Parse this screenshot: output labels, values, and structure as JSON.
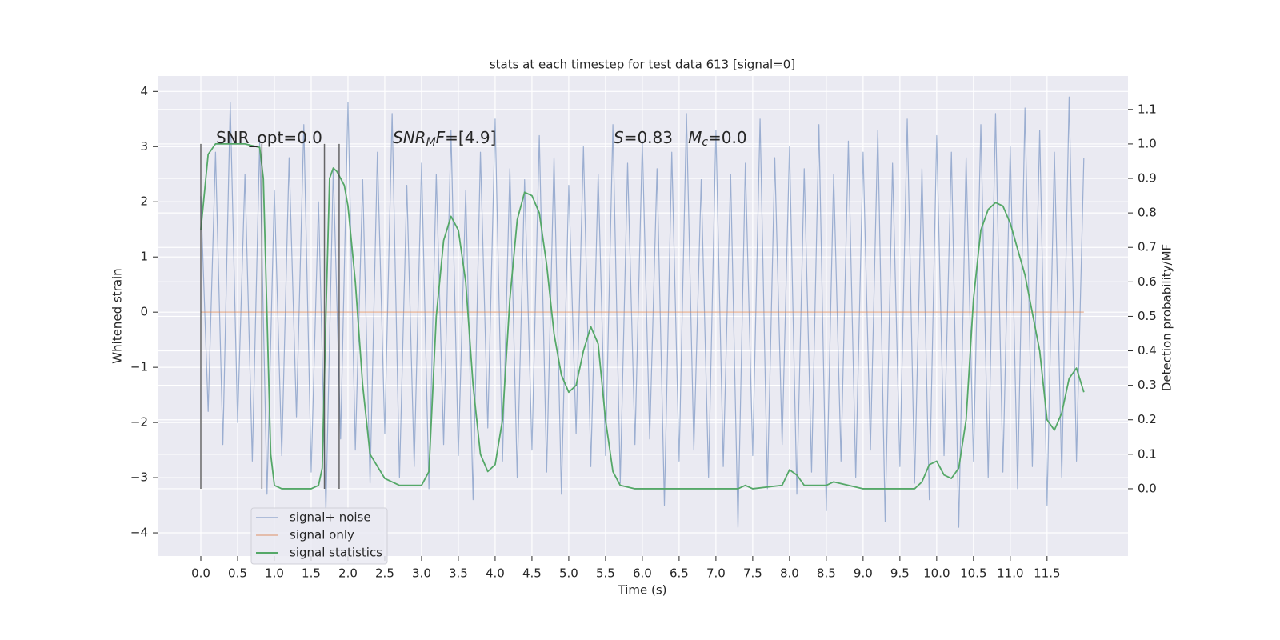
{
  "chart_data": {
    "type": "line",
    "title": "stats at each timestep for test data 613 [signal=0]",
    "x_label": "Time (s)",
    "y_label": "Whitened strain",
    "y2_label": "Detection probability/MF",
    "xlim": [
      -0.587,
      12.6
    ],
    "ylim": [
      -4.42,
      4.28
    ],
    "y2lim": [
      -0.195,
      1.197
    ],
    "xticks": [
      {
        "value": 0,
        "label": "0.0"
      },
      0.5,
      {
        "value": 1,
        "label": "1.0"
      },
      1.5,
      {
        "value": 2,
        "label": "2.0"
      },
      2.5,
      {
        "value": 3,
        "label": "3.0"
      },
      3.5,
      {
        "value": 4,
        "label": "4.0"
      },
      4.5,
      {
        "value": 5,
        "label": "5.0"
      },
      5.5,
      {
        "value": 6,
        "label": "6.0"
      },
      6.5,
      {
        "value": 7,
        "label": "7.0"
      },
      7.5,
      {
        "value": 8,
        "label": "8.0"
      },
      8.5,
      {
        "value": 9,
        "label": "9.0"
      },
      9.5,
      {
        "value": 10,
        "label": "10.0"
      },
      10.5,
      {
        "value": 11,
        "label": "11.0"
      },
      11.5
    ],
    "yticks": [
      {
        "value": -4,
        "label": "−4"
      },
      {
        "value": -3,
        "label": "−3"
      },
      {
        "value": -2,
        "label": "−2"
      },
      {
        "value": -1,
        "label": "−1"
      },
      0,
      1,
      2,
      3,
      4
    ],
    "y2ticks": [
      {
        "value": 0,
        "label": "0.0"
      },
      0.1,
      0.2,
      0.3,
      0.4,
      0.5,
      0.6,
      0.7,
      0.8,
      0.9,
      {
        "value": 1,
        "label": "1.0"
      },
      1.1
    ],
    "grid": true,
    "legend": "lower left",
    "series": [
      {
        "name": "signal+ noise",
        "color": "#4c72b0",
        "axis": "y",
        "x": [
          0,
          0.1,
          0.2,
          0.3,
          0.4,
          0.5,
          0.6,
          0.7,
          0.8,
          0.9,
          1.0,
          1.1,
          1.2,
          1.3,
          1.4,
          1.5,
          1.6,
          1.7,
          1.8,
          1.9,
          2.0,
          2.1,
          2.2,
          2.3,
          2.4,
          2.5,
          2.6,
          2.7,
          2.8,
          2.9,
          3.0,
          3.1,
          3.2,
          3.3,
          3.4,
          3.5,
          3.6,
          3.7,
          3.8,
          3.9,
          4.0,
          4.1,
          4.2,
          4.3,
          4.4,
          4.5,
          4.6,
          4.7,
          4.8,
          4.9,
          5.0,
          5.1,
          5.2,
          5.3,
          5.4,
          5.5,
          5.6,
          5.7,
          5.8,
          5.9,
          6.0,
          6.1,
          6.2,
          6.3,
          6.4,
          6.5,
          6.6,
          6.7,
          6.8,
          6.9,
          7.0,
          7.1,
          7.2,
          7.3,
          7.4,
          7.5,
          7.6,
          7.7,
          7.8,
          7.9,
          8.0,
          8.1,
          8.2,
          8.3,
          8.4,
          8.5,
          8.6,
          8.7,
          8.8,
          8.9,
          9.0,
          9.1,
          9.2,
          9.3,
          9.4,
          9.5,
          9.6,
          9.7,
          9.8,
          9.9,
          10.0,
          10.1,
          10.2,
          10.3,
          10.4,
          10.5,
          10.6,
          10.7,
          10.8,
          10.9,
          11.0,
          11.1,
          11.2,
          11.3,
          11.4,
          11.5,
          11.6,
          11.7,
          11.8,
          11.9,
          12.0
        ],
        "values": [
          2.1,
          -1.8,
          2.9,
          -2.4,
          3.8,
          -2.0,
          2.5,
          -2.7,
          3.1,
          -3.3,
          2.2,
          -2.6,
          2.8,
          -1.9,
          3.4,
          -2.9,
          2.0,
          -3.6,
          2.6,
          -2.3,
          3.8,
          -2.5,
          2.4,
          -3.1,
          2.9,
          -2.2,
          3.6,
          -3.0,
          2.3,
          -2.8,
          2.7,
          -3.2,
          2.5,
          -2.4,
          3.3,
          -2.6,
          2.2,
          -3.4,
          2.9,
          -2.1,
          3.5,
          -2.7,
          2.6,
          -3.0,
          2.4,
          -2.5,
          3.2,
          -2.9,
          2.8,
          -3.3,
          2.3,
          -2.2,
          3.0,
          -2.8,
          2.5,
          -2.6,
          3.4,
          -3.1,
          2.7,
          -2.4,
          3.1,
          -2.3,
          2.6,
          -3.5,
          2.9,
          -2.7,
          3.6,
          -2.5,
          2.4,
          -3.0,
          3.3,
          -2.8,
          2.5,
          -3.9,
          2.7,
          -2.6,
          3.5,
          -3.2,
          2.8,
          -2.4,
          3.0,
          -3.3,
          2.6,
          -2.9,
          3.4,
          -3.6,
          2.5,
          -2.7,
          3.1,
          -3.0,
          2.9,
          -2.5,
          3.3,
          -3.8,
          2.7,
          -2.8,
          3.5,
          -3.1,
          2.6,
          -3.4,
          3.2,
          -2.6,
          2.9,
          -3.9,
          2.8,
          -2.7,
          3.4,
          -3.0,
          3.6,
          -2.9,
          3.0,
          -3.2,
          3.7,
          -2.8,
          3.3,
          -3.5,
          2.9,
          -3.0,
          3.9,
          -2.7,
          2.8
        ]
      },
      {
        "name": "signal only",
        "color": "#dd8452",
        "axis": "y",
        "x": [
          0,
          12.0
        ],
        "values": [
          0,
          0
        ]
      },
      {
        "name": "signal statistics",
        "color": "#55a868",
        "axis": "y2",
        "x": [
          0,
          0.1,
          0.2,
          0.4,
          0.6,
          0.8,
          0.85,
          0.9,
          0.95,
          1.0,
          1.1,
          1.5,
          1.6,
          1.65,
          1.7,
          1.75,
          1.8,
          1.85,
          1.95,
          2.0,
          2.1,
          2.2,
          2.3,
          2.5,
          2.7,
          3.0,
          3.1,
          3.2,
          3.3,
          3.4,
          3.5,
          3.6,
          3.7,
          3.8,
          3.9,
          4.0,
          4.1,
          4.2,
          4.3,
          4.4,
          4.5,
          4.6,
          4.7,
          4.8,
          4.9,
          5.0,
          5.1,
          5.2,
          5.3,
          5.4,
          5.5,
          5.6,
          5.7,
          5.9,
          7.3,
          7.4,
          7.5,
          7.9,
          8.0,
          8.1,
          8.2,
          8.5,
          8.6,
          8.8,
          9.0,
          9.7,
          9.8,
          9.9,
          10.0,
          10.1,
          10.2,
          10.3,
          10.4,
          10.5,
          10.6,
          10.7,
          10.8,
          10.9,
          11.0,
          11.2,
          11.4,
          11.5,
          11.6,
          11.7,
          11.8,
          11.9,
          12.0
        ],
        "values": [
          0.75,
          0.97,
          1.0,
          1.0,
          1.0,
          0.99,
          0.9,
          0.5,
          0.1,
          0.01,
          0.0,
          0.0,
          0.01,
          0.06,
          0.5,
          0.9,
          0.93,
          0.92,
          0.88,
          0.82,
          0.6,
          0.3,
          0.1,
          0.03,
          0.01,
          0.01,
          0.05,
          0.5,
          0.72,
          0.79,
          0.75,
          0.6,
          0.3,
          0.1,
          0.05,
          0.07,
          0.2,
          0.55,
          0.78,
          0.86,
          0.85,
          0.8,
          0.65,
          0.45,
          0.33,
          0.28,
          0.3,
          0.4,
          0.47,
          0.42,
          0.2,
          0.05,
          0.01,
          0.0,
          0.0,
          0.01,
          0.0,
          0.01,
          0.055,
          0.04,
          0.01,
          0.01,
          0.02,
          0.01,
          0.0,
          0.0,
          0.02,
          0.07,
          0.08,
          0.04,
          0.03,
          0.06,
          0.2,
          0.55,
          0.75,
          0.81,
          0.83,
          0.82,
          0.77,
          0.62,
          0.4,
          0.2,
          0.17,
          0.22,
          0.32,
          0.35,
          0.28
        ]
      }
    ],
    "vlines": {
      "color": "#444444",
      "x": [
        0,
        0.83,
        1.68,
        1.88
      ],
      "y2_span": [
        0,
        1
      ]
    },
    "annotations": [
      {
        "parts": [
          {
            "text": "SNR_opt=0.0"
          }
        ]
      },
      {
        "parts": [
          {
            "text": "SNR",
            "italic": true
          },
          {
            "text": "M",
            "italic": true,
            "sub": true
          },
          {
            "text": "F",
            "italic": true
          },
          {
            "text": "=[4.9]"
          }
        ]
      },
      {
        "parts": [
          {
            "text": "S",
            "italic": true
          },
          {
            "text": "=0.83   "
          },
          {
            "text": "M",
            "italic": true
          },
          {
            "text": "c",
            "italic": true,
            "sub": true
          },
          {
            "text": "=0.0"
          }
        ]
      }
    ]
  }
}
